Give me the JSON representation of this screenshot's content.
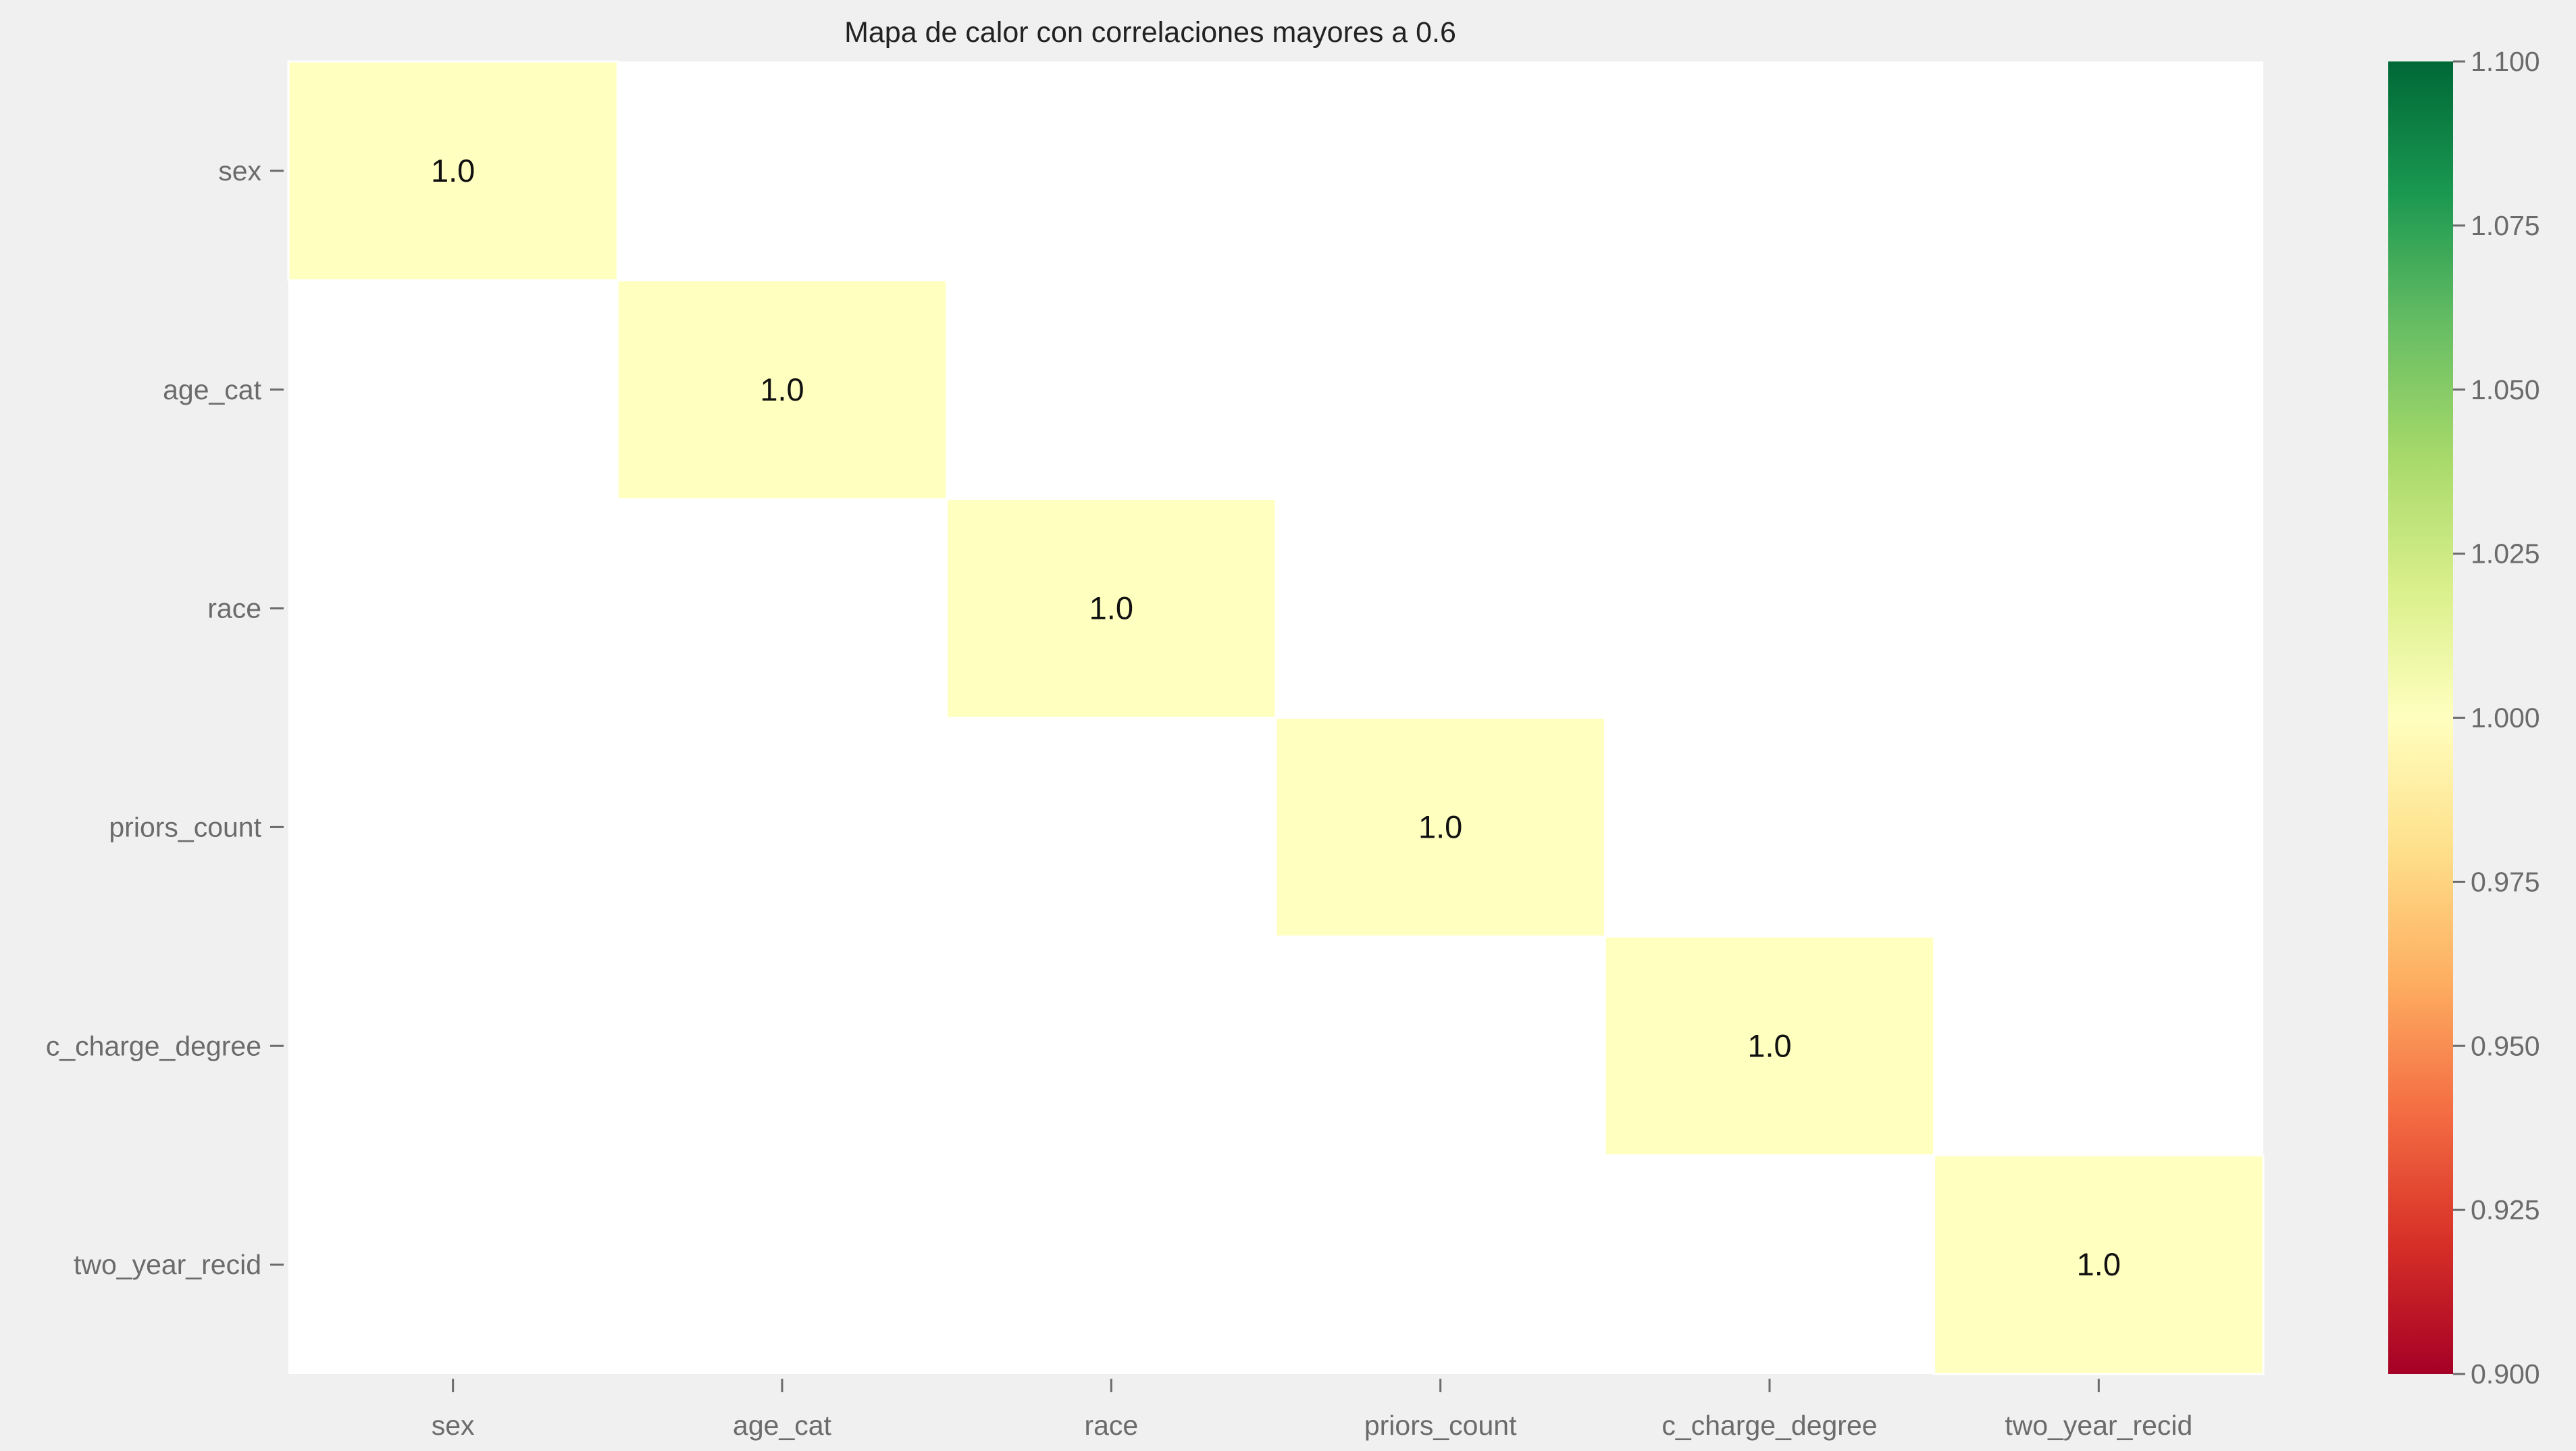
{
  "chart_data": {
    "type": "heatmap",
    "title": "Mapa de calor con correlaciones mayores a 0.6",
    "rows": [
      "sex",
      "age_cat",
      "race",
      "priors_count",
      "c_charge_degree",
      "two_year_recid"
    ],
    "columns": [
      "sex",
      "age_cat",
      "race",
      "priors_count",
      "c_charge_degree",
      "two_year_recid"
    ],
    "values": [
      [
        1.0,
        null,
        null,
        null,
        null,
        null
      ],
      [
        null,
        1.0,
        null,
        null,
        null,
        null
      ],
      [
        null,
        null,
        1.0,
        null,
        null,
        null
      ],
      [
        null,
        null,
        null,
        1.0,
        null,
        null
      ],
      [
        null,
        null,
        null,
        null,
        1.0,
        null
      ],
      [
        null,
        null,
        null,
        null,
        null,
        1.0
      ]
    ],
    "cell_labels": [
      [
        "1.0",
        "",
        "",
        "",
        "",
        ""
      ],
      [
        "",
        "1.0",
        "",
        "",
        "",
        ""
      ],
      [
        "",
        "",
        "1.0",
        "",
        "",
        ""
      ],
      [
        "",
        "",
        "",
        "1.0",
        "",
        ""
      ],
      [
        "",
        "",
        "",
        "",
        "1.0",
        ""
      ],
      [
        "",
        "",
        "",
        "",
        "",
        "1.0"
      ]
    ],
    "colorbar": {
      "colormap": "RdYlGn",
      "range": [
        0.9,
        1.1
      ],
      "ticks": [
        "0.900",
        "0.925",
        "0.950",
        "0.975",
        "1.000",
        "1.025",
        "1.050",
        "1.075",
        "1.100"
      ],
      "tick_values": [
        0.9,
        0.925,
        0.95,
        0.975,
        1.0,
        1.025,
        1.05,
        1.075,
        1.1
      ],
      "stops": [
        "#a50026",
        "#d73027",
        "#f46d43",
        "#fdae61",
        "#fee08b",
        "#ffffbf",
        "#d9ef8b",
        "#a6d96a",
        "#66bd63",
        "#1a9850",
        "#006837"
      ]
    },
    "colors": {
      "background": "#f0f0f0",
      "empty_cell": "#ffffff",
      "diagonal_cell": "#ffffbf",
      "tick_color": "#6b6b6b"
    },
    "grid": false
  }
}
